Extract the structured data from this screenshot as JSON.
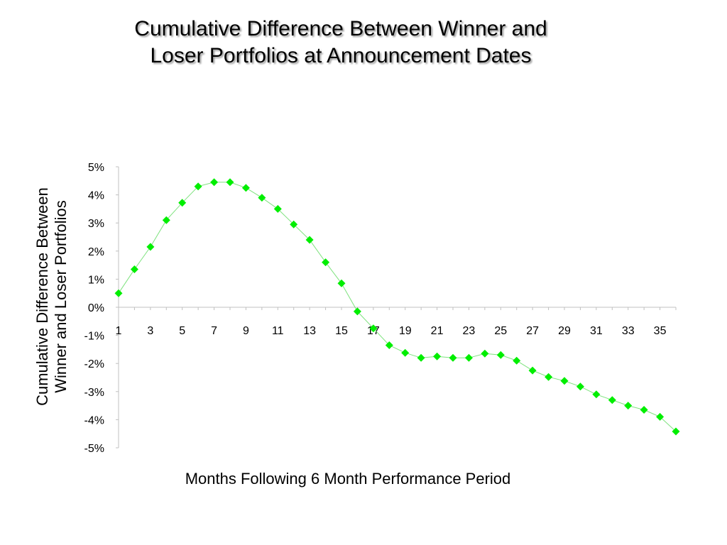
{
  "title": {
    "line1": "Cumulative Difference Between Winner and",
    "line2": "Loser Portfolios at Announcement Dates"
  },
  "colors": {
    "marker": "#00ee00",
    "line": "#7de27d",
    "axis": "#c0c0c0"
  },
  "chart_data": {
    "type": "line",
    "ylabel_lines": [
      "Cumulative Difference Between",
      "Winner and Loser Portfolios"
    ],
    "xlabel": "Months Following 6 Month Performance Period",
    "x": [
      1,
      2,
      3,
      4,
      5,
      6,
      7,
      8,
      9,
      10,
      11,
      12,
      13,
      14,
      15,
      16,
      17,
      18,
      19,
      20,
      21,
      22,
      23,
      24,
      25,
      26,
      27,
      28,
      29,
      30,
      31,
      32,
      33,
      34,
      35,
      36
    ],
    "x_tick_labels": [
      "1",
      "3",
      "5",
      "7",
      "9",
      "11",
      "13",
      "15",
      "17",
      "19",
      "21",
      "23",
      "25",
      "27",
      "29",
      "31",
      "33",
      "35"
    ],
    "y_tick_labels": [
      "5%",
      "4%",
      "3%",
      "2%",
      "1%",
      "0%",
      "-1%",
      "-2%",
      "-3%",
      "-4%",
      "-5%"
    ],
    "ylim": [
      -5,
      5
    ],
    "xlim": [
      1,
      36
    ],
    "grid": false,
    "series": [
      {
        "values": [
          0.5,
          1.35,
          2.15,
          3.1,
          3.72,
          4.3,
          4.45,
          4.45,
          4.25,
          3.9,
          3.5,
          2.95,
          2.4,
          1.6,
          0.85,
          -0.15,
          -0.75,
          -1.35,
          -1.62,
          -1.8,
          -1.75,
          -1.8,
          -1.8,
          -1.65,
          -1.7,
          -1.9,
          -2.25,
          -2.48,
          -2.62,
          -2.82,
          -3.1,
          -3.3,
          -3.5,
          -3.65,
          -3.9,
          -4.42
        ],
        "marker": "diamond"
      }
    ]
  }
}
